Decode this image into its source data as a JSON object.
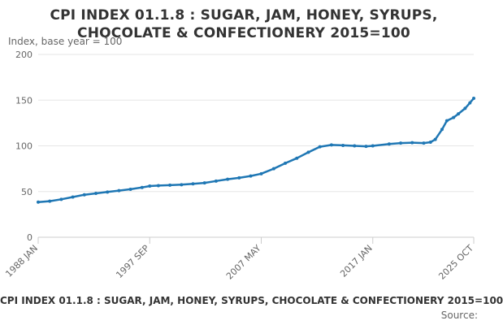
{
  "header": {
    "title_line1": "CPI INDEX 01.1.8 : SUGAR, JAM, HONEY, SYRUPS,",
    "title_line2": "CHOCOLATE & CONFECTIONERY 2015=100"
  },
  "footer": {
    "title": "CPI INDEX 01.1.8 : SUGAR, JAM, HONEY, SYRUPS, CHOCOLATE & CONFECTIONERY 2015=100",
    "source": "Source:"
  },
  "colors": {
    "series": "#1f77b4",
    "grid": "#e6e6e6",
    "axis": "#cccccc",
    "text": "#666666"
  },
  "chart_data": {
    "type": "line",
    "title": "CPI INDEX 01.1.8 : SUGAR, JAM, HONEY, SYRUPS, CHOCOLATE & CONFECTIONERY 2015=100",
    "ylabel": "Index, base year = 100",
    "ylim": [
      0,
      200
    ],
    "yticks": [
      0,
      50,
      100,
      150,
      200
    ],
    "xrange": [
      "1988-01",
      "2025-10"
    ],
    "xticks": [
      {
        "label": "1988 JAN",
        "date": "1988-01"
      },
      {
        "label": "1997 SEP",
        "date": "1997-09"
      },
      {
        "label": "2007 MAY",
        "date": "2007-05"
      },
      {
        "label": "2017 JAN",
        "date": "2017-01"
      },
      {
        "label": "2025 OCT",
        "date": "2025-10"
      }
    ],
    "grid": true,
    "series": [
      {
        "points": [
          [
            "1988-01",
            38.5
          ],
          [
            "1989-01",
            39.5
          ],
          [
            "1990-01",
            41.5
          ],
          [
            "1991-01",
            44.0
          ],
          [
            "1992-01",
            46.5
          ],
          [
            "1993-01",
            48.0
          ],
          [
            "1994-01",
            49.5
          ],
          [
            "1995-01",
            51.0
          ],
          [
            "1996-01",
            52.5
          ],
          [
            "1997-01",
            54.5
          ],
          [
            "1997-09",
            56.0
          ],
          [
            "1998-06",
            56.5
          ],
          [
            "1999-06",
            57.0
          ],
          [
            "2000-06",
            57.5
          ],
          [
            "2001-06",
            58.5
          ],
          [
            "2002-06",
            59.5
          ],
          [
            "2003-06",
            61.5
          ],
          [
            "2004-06",
            63.5
          ],
          [
            "2005-06",
            65.0
          ],
          [
            "2006-06",
            67.0
          ],
          [
            "2007-05",
            69.5
          ],
          [
            "2008-06",
            75.0
          ],
          [
            "2009-06",
            81.0
          ],
          [
            "2010-06",
            86.5
          ],
          [
            "2011-06",
            93.0
          ],
          [
            "2012-06",
            99.0
          ],
          [
            "2013-06",
            101.0
          ],
          [
            "2014-06",
            100.5
          ],
          [
            "2015-06",
            100.0
          ],
          [
            "2016-06",
            99.5
          ],
          [
            "2017-01",
            100.0
          ],
          [
            "2018-06",
            102.0
          ],
          [
            "2019-06",
            103.0
          ],
          [
            "2020-06",
            103.5
          ],
          [
            "2021-06",
            103.0
          ],
          [
            "2022-01",
            104.0
          ],
          [
            "2022-06",
            107.0
          ],
          [
            "2023-01",
            118.0
          ],
          [
            "2023-06",
            127.5
          ],
          [
            "2024-01",
            131.0
          ],
          [
            "2024-06",
            135.0
          ],
          [
            "2025-01",
            141.0
          ],
          [
            "2025-06",
            147.0
          ],
          [
            "2025-10",
            152.0
          ]
        ]
      }
    ]
  }
}
